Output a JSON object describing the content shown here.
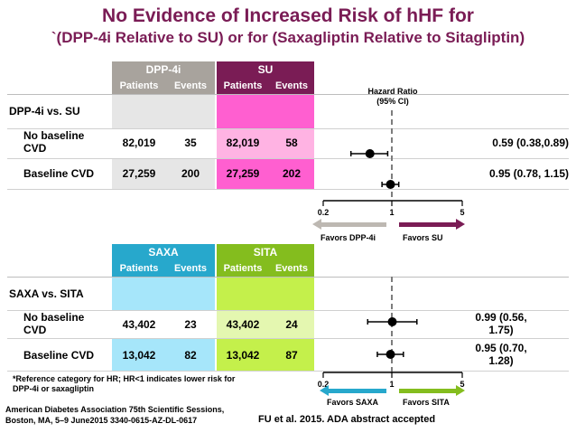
{
  "title_line1": "No Evidence of Increased Risk of hHF for",
  "title_line2": "`(DPP-4i Relative to SU) or for (Saxagliptin Relative to Sitagliptin)",
  "panel1": {
    "group1": "DPP-4i",
    "group2": "SU",
    "col_patients": "Patients",
    "col_events": "Events",
    "section_label": "DPP-4i vs. SU",
    "rows": [
      {
        "label1": "No baseline",
        "label2": "CVD",
        "g1_patients": "82,019",
        "g1_events": "35",
        "g2_patients": "82,019",
        "g2_events": "58",
        "hr_text": "0.59 (0.38,0.89)"
      },
      {
        "label1": "Baseline CVD",
        "label2": "",
        "g1_patients": "27,259",
        "g1_events": "200",
        "g2_patients": "27,259",
        "g2_events": "202",
        "hr_text": "0.95 (0.78, 1.15)"
      }
    ],
    "hr_title1": "Hazard Ratio",
    "hr_title2": "(95% CI)",
    "favors_left": "Favors DPP-4i",
    "favors_right": "Favors SU"
  },
  "panel2": {
    "group1": "SAXA",
    "group2": "SITA",
    "col_patients": "Patients",
    "col_events": "Events",
    "section_label": "SAXA vs. SITA",
    "rows": [
      {
        "label1": "No baseline",
        "label2": "CVD",
        "g1_patients": "43,402",
        "g1_events": "23",
        "g2_patients": "43,402",
        "g2_events": "24",
        "hr_line1": "0.99 (0.56,",
        "hr_line2": "1.75)"
      },
      {
        "label1": "Baseline CVD",
        "label2": "",
        "g1_patients": "13,042",
        "g1_events": "82",
        "g2_patients": "13,042",
        "g2_events": "87",
        "hr_line1": "0.95 (0.70,",
        "hr_line2": "1.28)"
      }
    ],
    "favors_left": "Favors SAXA",
    "favors_right": "Favors SITA"
  },
  "footnote_line1": "*Reference category for HR; HR<1 indicates lower risk for",
  "footnote_line2": "DPP-4i or saxagliptin",
  "citation_line1": "American Diabetes Association 75th Scientific Sessions,",
  "citation_line2": "Boston, MA, 5–9 June2015 3340-0615-AZ-DL-0617",
  "citation_right": "FU et al. 2015. ADA abstract accepted",
  "colors": {
    "title": "#7a1c55",
    "dpp4i_header": "#a8a39d",
    "su_header": "#7a1c55",
    "dpp4i_light": "#e6e6e6",
    "su_bright": "#ff5fd0",
    "su_pale": "#ffb3e3",
    "saxa_header": "#27a8cc",
    "sita_header": "#84bd1e",
    "saxa_light": "#a6e6fa",
    "sita_bright": "#c4f04b",
    "sita_pale": "#e4f7b0"
  },
  "chart_data": [
    {
      "type": "forest",
      "axis": "log",
      "xlim": [
        0.2,
        5
      ],
      "ticks": [
        "0.2",
        "1",
        "5"
      ],
      "reference": 1,
      "rows": [
        {
          "label": "No baseline CVD",
          "hr": 0.59,
          "lo": 0.38,
          "hi": 0.89
        },
        {
          "label": "Baseline CVD",
          "hr": 0.95,
          "lo": 0.78,
          "hi": 1.15
        }
      ]
    },
    {
      "type": "forest",
      "axis": "log",
      "xlim": [
        0.2,
        5
      ],
      "ticks": [
        "0.2",
        "1",
        "5"
      ],
      "reference": 1,
      "rows": [
        {
          "label": "No baseline CVD",
          "hr": 0.99,
          "lo": 0.56,
          "hi": 1.75
        },
        {
          "label": "Baseline CVD",
          "hr": 0.95,
          "lo": 0.7,
          "hi": 1.28
        }
      ]
    }
  ]
}
